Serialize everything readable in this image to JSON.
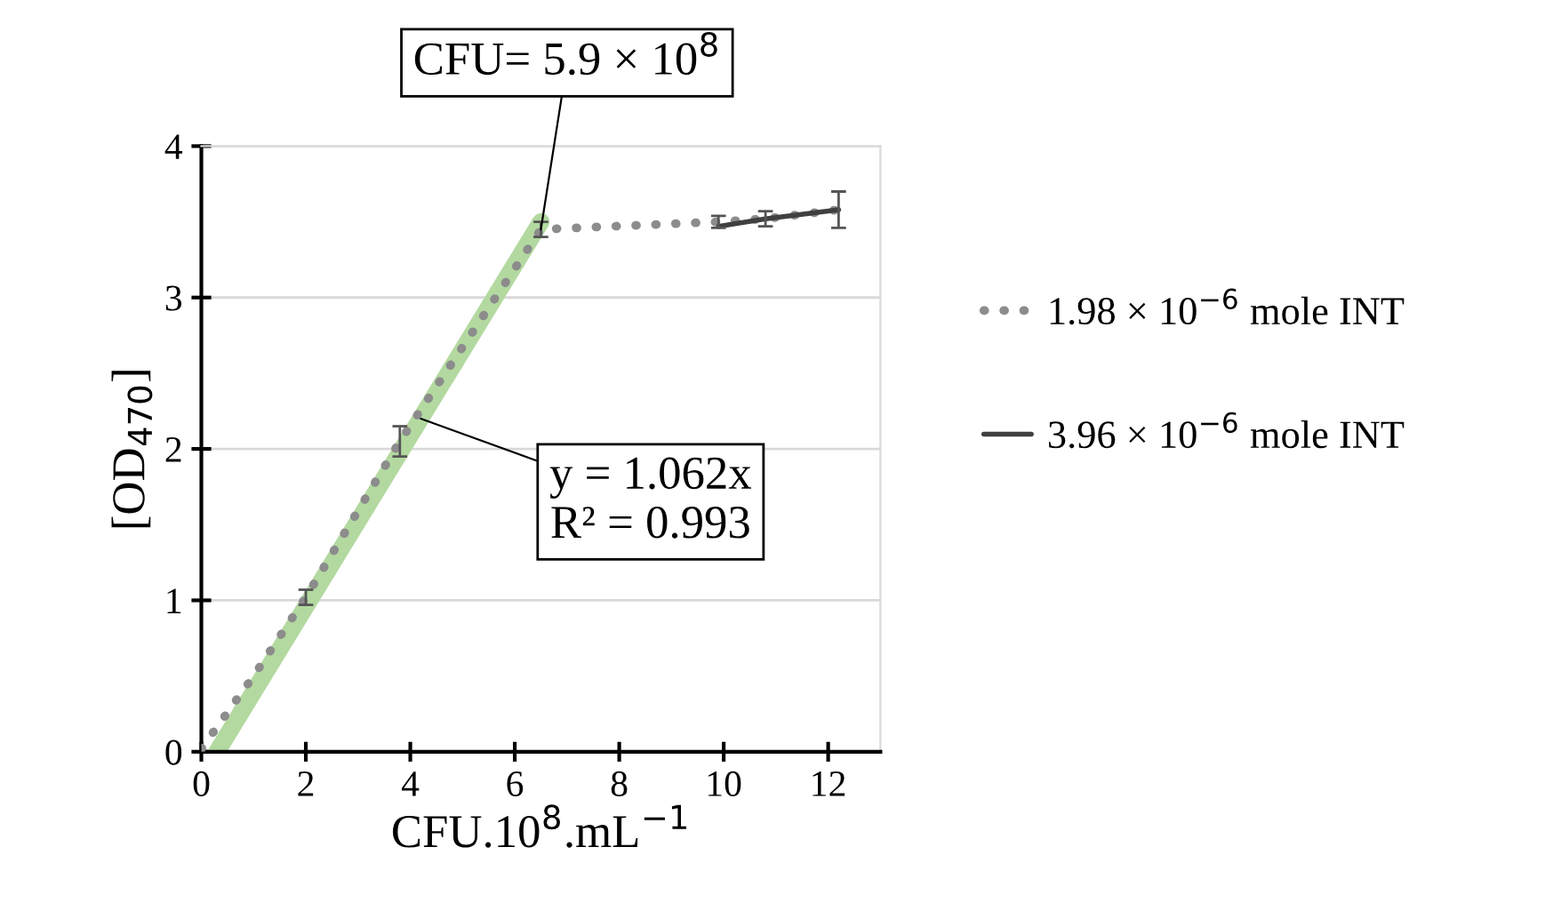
{
  "chart_data": {
    "type": "line",
    "xlabel": "CFU.10$^{8}$.mL$^{−1}$",
    "ylabel": "[OD$_{470}$]",
    "xlim": [
      0,
      13
    ],
    "xticks": [
      0,
      2,
      4,
      6,
      8,
      10,
      12
    ],
    "ylim": [
      0,
      4
    ],
    "yticks": [
      0,
      1,
      2,
      3,
      4
    ],
    "grid": "y",
    "legend": "right",
    "marker": "none",
    "series": [
      {
        "type": "line",
        "color": "#b3d9a0",
        "x": [
          0.3,
          6.5
        ],
        "values": [
          0,
          3.5
        ]
      },
      {
        "name": "1.98 × 10$^{−6}$ mole INT",
        "color": "#8c8c8c",
        "line_style": "dotted",
        "x": [
          0,
          1,
          2,
          3.8,
          6.5,
          9.9,
          10.8,
          12.2
        ],
        "values": [
          0.02,
          0.5,
          1.02,
          2.05,
          3.45,
          3.5,
          3.52,
          3.58
        ],
        "errors": [
          null,
          null,
          0.05,
          0.1,
          0.05,
          0.04,
          0.05,
          0.12
        ]
      },
      {
        "name": "3.96 × 10$^{−6}$ mole INT",
        "color": "#404040",
        "line_style": "solid",
        "x": [
          9.9,
          10.8,
          12.2
        ],
        "values": [
          3.47,
          3.52,
          3.58
        ]
      }
    ],
    "annotations": [
      {
        "text": "CFU= 5.9 × 10$^{8}$",
        "x": 6.5,
        "y": 3.45
      },
      {
        "text": "y = 1.062x\nR² = 0.993",
        "x": 4.2,
        "y": 2.2
      }
    ]
  }
}
